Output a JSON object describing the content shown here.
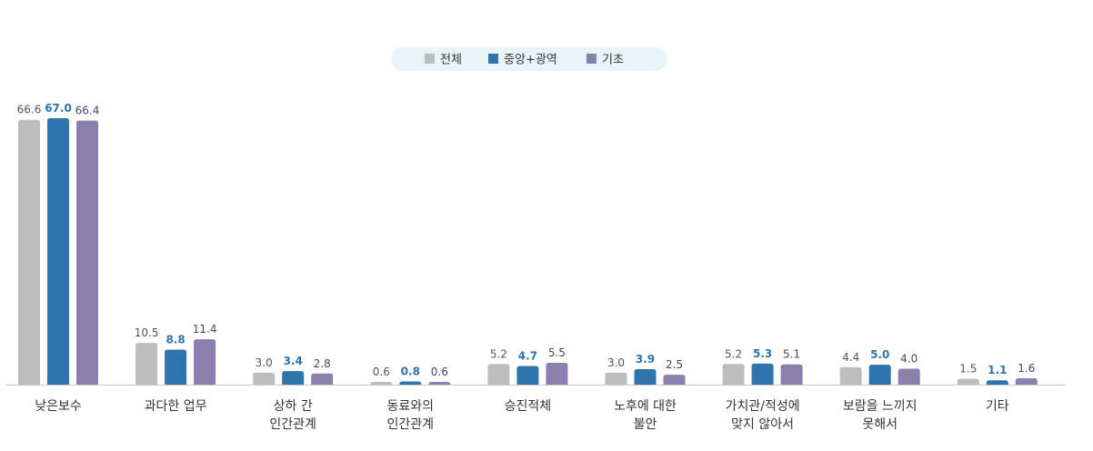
{
  "chart_data": {
    "type": "bar",
    "categories": [
      [
        "낮은보수"
      ],
      [
        "과다한 업무"
      ],
      [
        "상하 간",
        "인간관계"
      ],
      [
        "동료와의",
        "인간관계"
      ],
      [
        "승진적체"
      ],
      [
        "노후에 대한",
        "불안"
      ],
      [
        "가치관/적성에",
        "맞지 않아서"
      ],
      [
        "보람을 느끼지",
        "못해서"
      ],
      [
        "기타"
      ]
    ],
    "series": [
      {
        "name": "전체",
        "color": "#bdbdbd",
        "label_color": "#555555",
        "values": [
          66.6,
          10.5,
          3.0,
          0.6,
          5.2,
          3.0,
          5.2,
          4.4,
          1.5
        ],
        "labels": [
          "66.6",
          "10.5",
          "3.0",
          "0.6",
          "5.2",
          "3.0",
          "5.2",
          "4.4",
          "1.5"
        ]
      },
      {
        "name": "중앙+광역",
        "color": "#2e74ad",
        "label_color": "#2e74ad",
        "values": [
          67.0,
          8.8,
          3.4,
          0.8,
          4.7,
          3.9,
          5.3,
          5.0,
          1.1
        ],
        "labels": [
          "67.0",
          "8.8",
          "3.4",
          "0.8",
          "4.7",
          "3.9",
          "5.3",
          "5.0",
          "1.1"
        ]
      },
      {
        "name": "기초",
        "color": "#8b7fae",
        "label_color": "#4a3f6b",
        "values": [
          66.4,
          11.4,
          2.8,
          0.6,
          5.5,
          2.5,
          5.1,
          4.0,
          1.6
        ],
        "labels": [
          "66.4",
          "11.4",
          "2.8",
          "0.6",
          "5.5",
          "2.5",
          "5.1",
          "4.0",
          "1.6"
        ]
      }
    ],
    "ylim": [
      0,
      67
    ],
    "legend_position": "top-center",
    "grid": false
  }
}
